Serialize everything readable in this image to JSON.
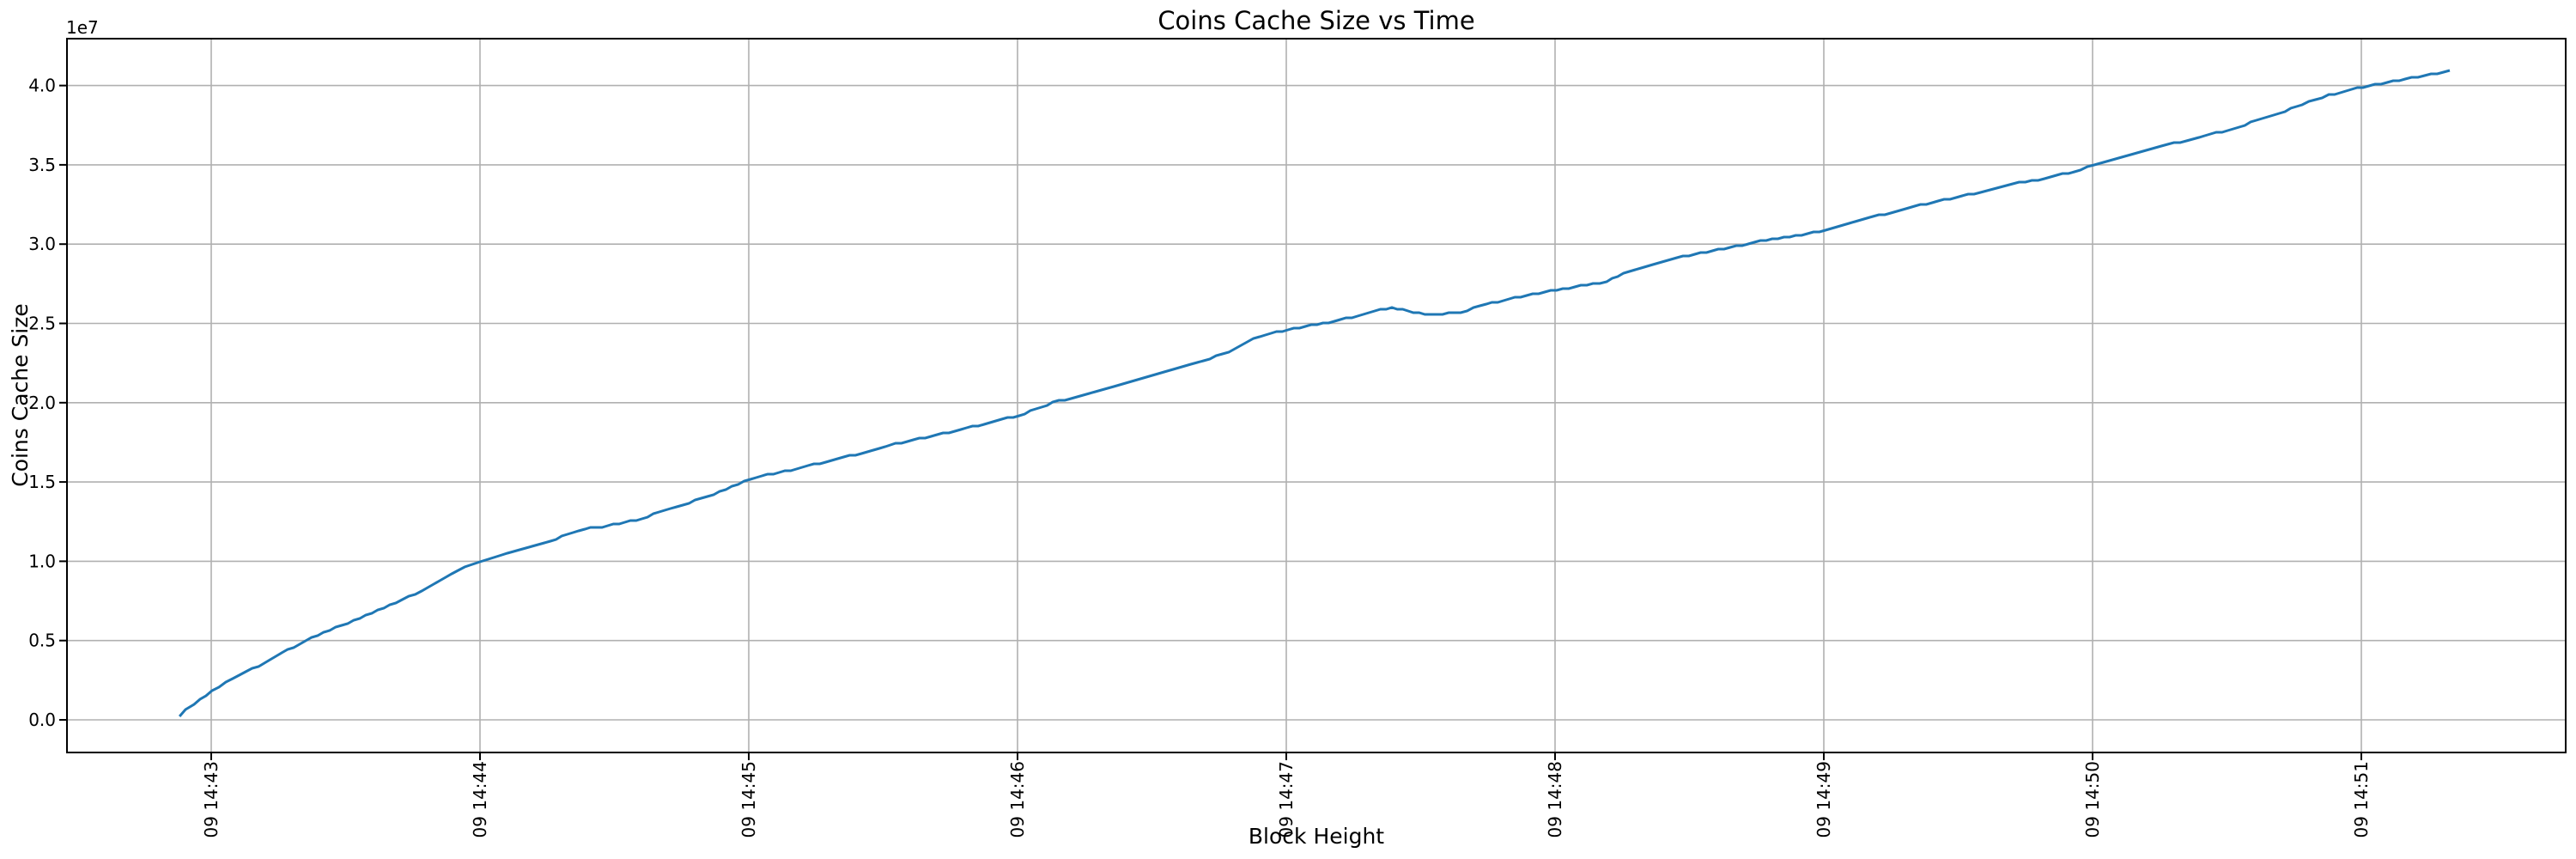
{
  "chart_data": {
    "type": "line",
    "title": "Coins Cache Size vs Time",
    "xlabel": "Block Height",
    "ylabel": "Coins Cache Size",
    "y_offset_label": "1e7",
    "grid": true,
    "legend": "none",
    "colors": {
      "line": "#1f77b4",
      "grid": "#b0b0b0",
      "spine": "#000000",
      "text": "#000000",
      "background": "#ffffff"
    },
    "x_tick_labels": [
      "09 14:43",
      "09 14:44",
      "09 14:45",
      "09 14:46",
      "09 14:47",
      "09 14:48",
      "09 14:49",
      "09 14:50",
      "09 14:51"
    ],
    "x_tick_positions_minutes_after_1443": [
      0,
      1,
      2,
      3,
      4,
      5,
      6,
      7,
      8
    ],
    "y_ticks_1e7": [
      0.0,
      0.5,
      1.0,
      1.5,
      2.0,
      2.5,
      3.0,
      3.5,
      4.0
    ],
    "x_range_minutes_after_1443": [
      -0.537,
      8.76
    ],
    "y_range_1e7": [
      -0.206,
      4.298
    ],
    "series": [
      {
        "name": "coins-cache-size",
        "x_minutes_after_1443": [
          -0.118,
          -0.096,
          -0.064,
          0.003,
          0.08,
          0.176,
          0.262,
          0.351,
          0.463,
          0.575,
          0.687,
          0.783,
          0.895,
          0.943,
          1.0,
          1.102,
          1.262,
          1.367,
          1.39,
          1.454,
          1.581,
          1.709,
          1.869,
          2.006,
          2.22,
          2.508,
          2.546,
          2.789,
          3.006,
          3.131,
          3.358,
          3.645,
          3.786,
          3.901,
          4.006,
          4.201,
          4.329,
          4.393,
          4.473,
          4.537,
          4.649,
          4.744,
          4.872,
          5.006,
          5.141,
          5.192,
          5.233,
          5.364,
          5.498,
          5.629,
          5.764,
          5.895,
          6.006,
          6.16,
          6.294,
          6.425,
          6.559,
          6.703,
          6.821,
          6.955,
          7.006,
          7.256,
          7.396,
          7.524,
          7.652,
          7.78,
          7.879,
          8.006,
          8.163,
          8.259,
          8.329
        ],
        "y_1e7": [
          0.02,
          0.06,
          0.1,
          0.18,
          0.26,
          0.34,
          0.42,
          0.5,
          0.58,
          0.66,
          0.74,
          0.81,
          0.92,
          0.965,
          1.0,
          1.05,
          1.13,
          1.19,
          1.205,
          1.215,
          1.26,
          1.33,
          1.42,
          1.52,
          1.6,
          1.72,
          1.74,
          1.83,
          1.92,
          2.0,
          2.1,
          2.24,
          2.32,
          2.42,
          2.46,
          2.52,
          2.58,
          2.6,
          2.57,
          2.555,
          2.57,
          2.62,
          2.67,
          2.71,
          2.75,
          2.76,
          2.8,
          2.87,
          2.93,
          2.97,
          3.02,
          3.05,
          3.09,
          3.16,
          3.22,
          3.27,
          3.32,
          3.38,
          3.41,
          3.47,
          3.5,
          3.62,
          3.67,
          3.73,
          3.8,
          3.88,
          3.94,
          3.99,
          4.04,
          4.07,
          4.09
        ]
      }
    ]
  }
}
